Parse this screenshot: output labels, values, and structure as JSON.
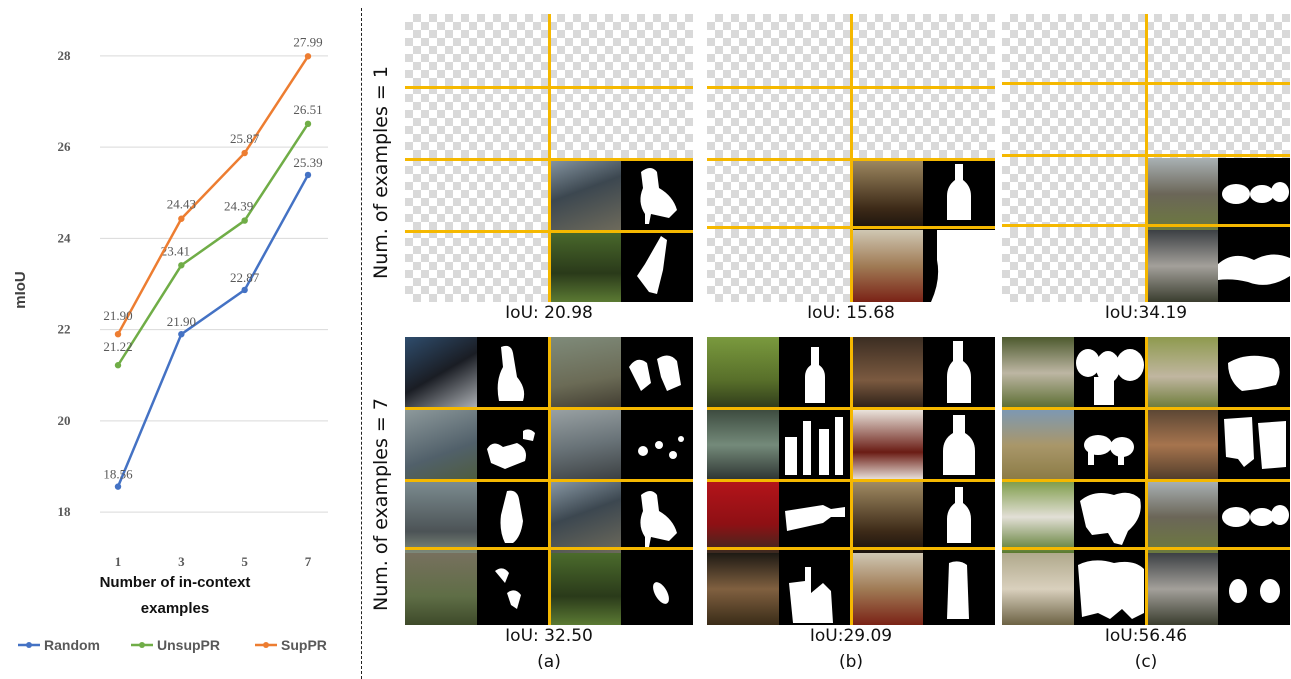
{
  "chart_data": {
    "type": "line",
    "x": [
      1,
      3,
      5,
      7
    ],
    "xlabel": "Number of in-context examples",
    "ylabel": "mIoU",
    "ylim": [
      17.5,
      28.5
    ],
    "y_ticks": [
      "18",
      "20",
      "22",
      "24",
      "26",
      "28"
    ],
    "x_ticks": [
      "1",
      "3",
      "5",
      "7"
    ],
    "grid": true,
    "legend_position": "bottom",
    "series": [
      {
        "name": "Random",
        "values": [
          18.56,
          21.9,
          22.87,
          25.39
        ],
        "labels": [
          "18.56",
          "21.90",
          "22.87",
          "25.39"
        ],
        "color": "#4472c4"
      },
      {
        "name": "UnsupPR",
        "values": [
          21.22,
          23.41,
          24.39,
          26.51
        ],
        "labels": [
          "21.22",
          "23.41",
          "24.39",
          "26.51"
        ],
        "color": "#70ad47"
      },
      {
        "name": "SupPR",
        "values": [
          21.9,
          24.43,
          25.87,
          27.99
        ],
        "labels": [
          "21.90",
          "24.43",
          "25.87",
          "27.99"
        ],
        "color": "#ed7d31"
      }
    ]
  },
  "figure": {
    "row_labels": [
      "Num. of examples = 1",
      "Num. of examples = 7"
    ],
    "columns": [
      {
        "label": "(a)",
        "subject": "bird",
        "iou_top": "IoU: 20.98",
        "iou_bottom": "IoU: 32.50"
      },
      {
        "label": "(b)",
        "subject": "bottle",
        "iou_top": "IoU: 15.68",
        "iou_bottom": "IoU:29.09"
      },
      {
        "label": "(c)",
        "subject": "sheep",
        "iou_top": "IoU:34.19",
        "iou_bottom": "IoU:56.46"
      }
    ],
    "grid_line_color": "#f5b800"
  }
}
